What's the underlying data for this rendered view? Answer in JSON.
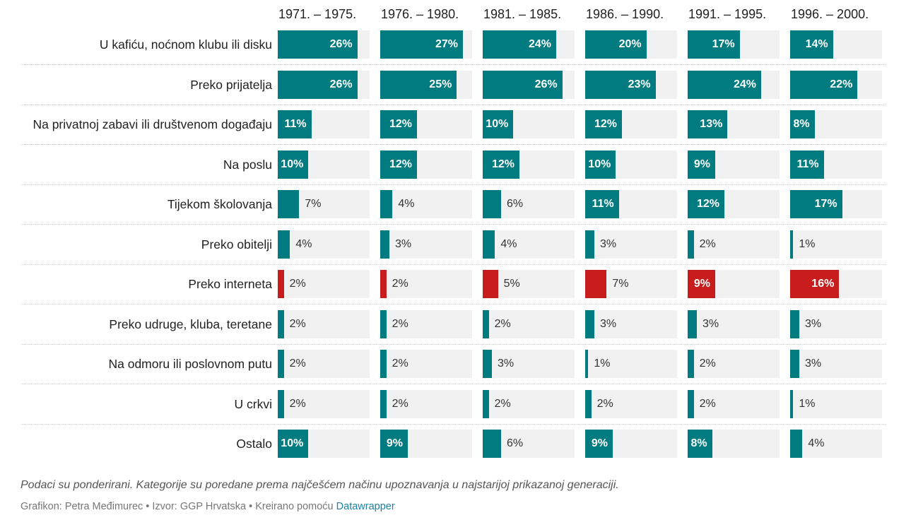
{
  "chart_data": {
    "type": "bar",
    "title": "",
    "xlim": [
      0,
      30
    ],
    "columns": [
      "1971. – 1975.",
      "1976. – 1980.",
      "1981. – 1985.",
      "1986. – 1990.",
      "1991. – 1995.",
      "1996. – 2000."
    ],
    "categories": [
      "U kafiću, noćnom klubu ili disku",
      "Preko prijatelja",
      "Na privatnoj zabavi ili društvenom događaju",
      "Na poslu",
      "Tijekom školovanja",
      "Preko obitelji",
      "Preko interneta",
      "Preko udruge, kluba, teretane",
      "Na odmoru ili poslovnom putu",
      "U crkvi",
      "Ostalo"
    ],
    "values": [
      [
        26,
        27,
        24,
        20,
        17,
        14
      ],
      [
        26,
        25,
        26,
        23,
        24,
        22
      ],
      [
        11,
        12,
        10,
        12,
        13,
        8
      ],
      [
        10,
        12,
        12,
        10,
        9,
        11
      ],
      [
        7,
        4,
        6,
        11,
        12,
        17
      ],
      [
        4,
        3,
        4,
        3,
        2,
        1
      ],
      [
        2,
        2,
        5,
        7,
        9,
        16
      ],
      [
        2,
        2,
        2,
        3,
        3,
        3
      ],
      [
        2,
        2,
        3,
        1,
        2,
        3
      ],
      [
        2,
        2,
        2,
        2,
        2,
        1
      ],
      [
        10,
        9,
        6,
        9,
        8,
        4
      ]
    ],
    "value_suffix": "%",
    "highlight_category": "Preko interneta",
    "colors": {
      "default": "#007b7f",
      "highlight": "#c71e1d",
      "background": "#f1f1f1"
    }
  },
  "footer": {
    "notes": "Podaci su ponderirani. Kategorije su poredane prema najčešćem načinu upoznavanja u najstarijoj prikazanoj generaciji.",
    "byline": "Grafikon: Petra Međimurec • Izvor: GGP Hrvatska • Kreirano pomoću",
    "link": "Datawrapper"
  }
}
